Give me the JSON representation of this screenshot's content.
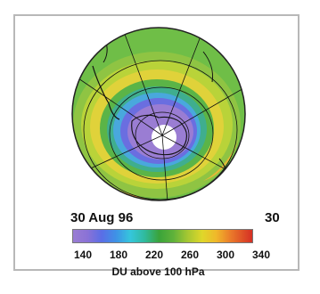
{
  "panel": {
    "date_label": "30 Aug 96",
    "right_label": "30",
    "colorbar_ticks": [
      "140",
      "180",
      "220",
      "260",
      "300",
      "340"
    ],
    "unit_label": "DU above 100 hPa"
  },
  "colors": {
    "background": "#ffffff",
    "frame": "#b8b8b8",
    "low_ozone": "#8a72d6",
    "mid_ozone": "#3aa33a",
    "high_ozone": "#dfd72a"
  }
}
